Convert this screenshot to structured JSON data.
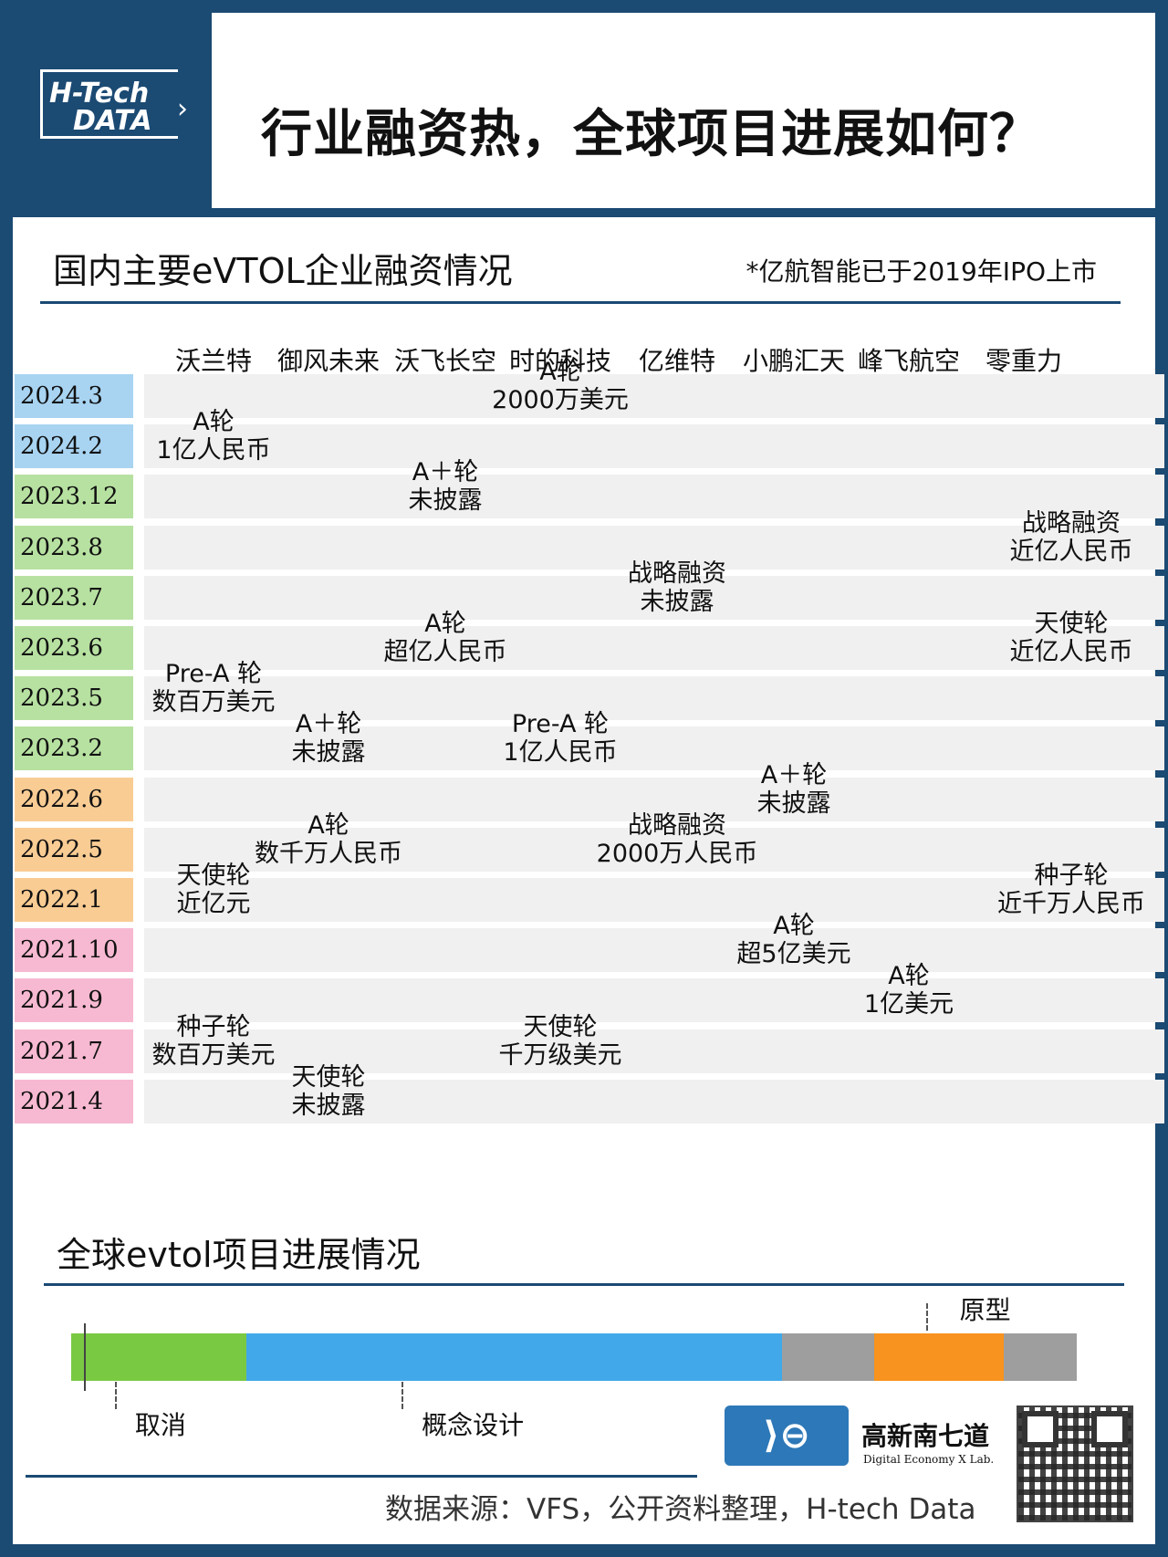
{
  "logo": {
    "line1": "H-Tech",
    "line2": "DATA"
  },
  "title": "行业融资热，全球项目进展如何？",
  "section1": {
    "title": "国内主要eVTOL企业融资情况",
    "note": "*亿航智能已于2019年IPO上市",
    "companies": [
      "沃兰特",
      "御风未来",
      "沃飞长空",
      "时的科技",
      "亿维特",
      "小鹏汇天",
      "峰飞航空",
      "零重力"
    ],
    "rows": [
      {
        "date": "2024.3",
        "color": "#a8d4f2",
        "events": [
          {
            "col": 3,
            "round": "A轮",
            "amount": "2000万美元"
          }
        ]
      },
      {
        "date": "2024.2",
        "color": "#a8d4f2",
        "events": [
          {
            "col": 0,
            "round": "A轮",
            "amount": "1亿人民币"
          }
        ]
      },
      {
        "date": "2023.12",
        "color": "#b7e1a1",
        "events": [
          {
            "col": 2,
            "round": "A＋轮",
            "amount": "未披露"
          }
        ]
      },
      {
        "date": "2023.8",
        "color": "#b7e1a1",
        "events": [
          {
            "col": 7,
            "round": "战略融资",
            "amount": "近亿人民币"
          }
        ]
      },
      {
        "date": "2023.7",
        "color": "#b7e1a1",
        "events": [
          {
            "col": 4,
            "round": "战略融资",
            "amount": "未披露"
          }
        ]
      },
      {
        "date": "2023.6",
        "color": "#b7e1a1",
        "events": [
          {
            "col": 2,
            "round": "A轮",
            "amount": "超亿人民币"
          },
          {
            "col": 7,
            "round": "天使轮",
            "amount": "近亿人民币"
          }
        ]
      },
      {
        "date": "2023.5",
        "color": "#b7e1a1",
        "events": [
          {
            "col": 0,
            "round": "Pre-A 轮",
            "amount": "数百万美元"
          }
        ]
      },
      {
        "date": "2023.2",
        "color": "#b7e1a1",
        "events": [
          {
            "col": 1,
            "round": "A＋轮",
            "amount": "未披露"
          },
          {
            "col": 3,
            "round": "Pre-A 轮",
            "amount": "1亿人民币"
          }
        ]
      },
      {
        "date": "2022.6",
        "color": "#f9cc94",
        "events": [
          {
            "col": 5,
            "round": "A＋轮",
            "amount": "未披露"
          }
        ]
      },
      {
        "date": "2022.5",
        "color": "#f9cc94",
        "events": [
          {
            "col": 1,
            "round": "A轮",
            "amount": "数千万人民币"
          },
          {
            "col": 4,
            "round": "战略融资",
            "amount": "2000万人民币"
          }
        ]
      },
      {
        "date": "2022.1",
        "color": "#f9cc94",
        "events": [
          {
            "col": 0,
            "round": "天使轮",
            "amount": "近亿元"
          },
          {
            "col": 7,
            "round": "种子轮",
            "amount": "近千万人民币"
          }
        ]
      },
      {
        "date": "2021.10",
        "color": "#f7b9d1",
        "events": [
          {
            "col": 5,
            "round": "A轮",
            "amount": "超5亿美元"
          }
        ]
      },
      {
        "date": "2021.9",
        "color": "#f7b9d1",
        "events": [
          {
            "col": 6,
            "round": "A轮",
            "amount": "1亿美元"
          }
        ]
      },
      {
        "date": "2021.7",
        "color": "#f7b9d1",
        "events": [
          {
            "col": 0,
            "round": "种子轮",
            "amount": "数百万美元"
          },
          {
            "col": 3,
            "round": "天使轮",
            "amount": "千万级美元"
          }
        ]
      },
      {
        "date": "2021.4",
        "color": "#f7b9d1",
        "events": [
          {
            "col": 1,
            "round": "天使轮",
            "amount": "未披露"
          }
        ]
      }
    ]
  },
  "section2": {
    "title": "全球evtol项目进展情况",
    "segments": [
      {
        "label": "取消",
        "share": 0.174,
        "color": "#7ac943"
      },
      {
        "label": "概念设计",
        "share": 0.533,
        "color": "#41a8ea"
      },
      {
        "label": "",
        "share": 0.092,
        "color": "#9e9e9e"
      },
      {
        "label": "原型",
        "share": 0.128,
        "color": "#f7931e"
      },
      {
        "label": "",
        "share": 0.073,
        "color": "#9e9e9e"
      }
    ]
  },
  "footer": {
    "brand_name": "高新南七道",
    "brand_sub": "Digital Economy X Lab.",
    "source": "数据来源：VFS，公开资料整理，H-tech Data"
  }
}
